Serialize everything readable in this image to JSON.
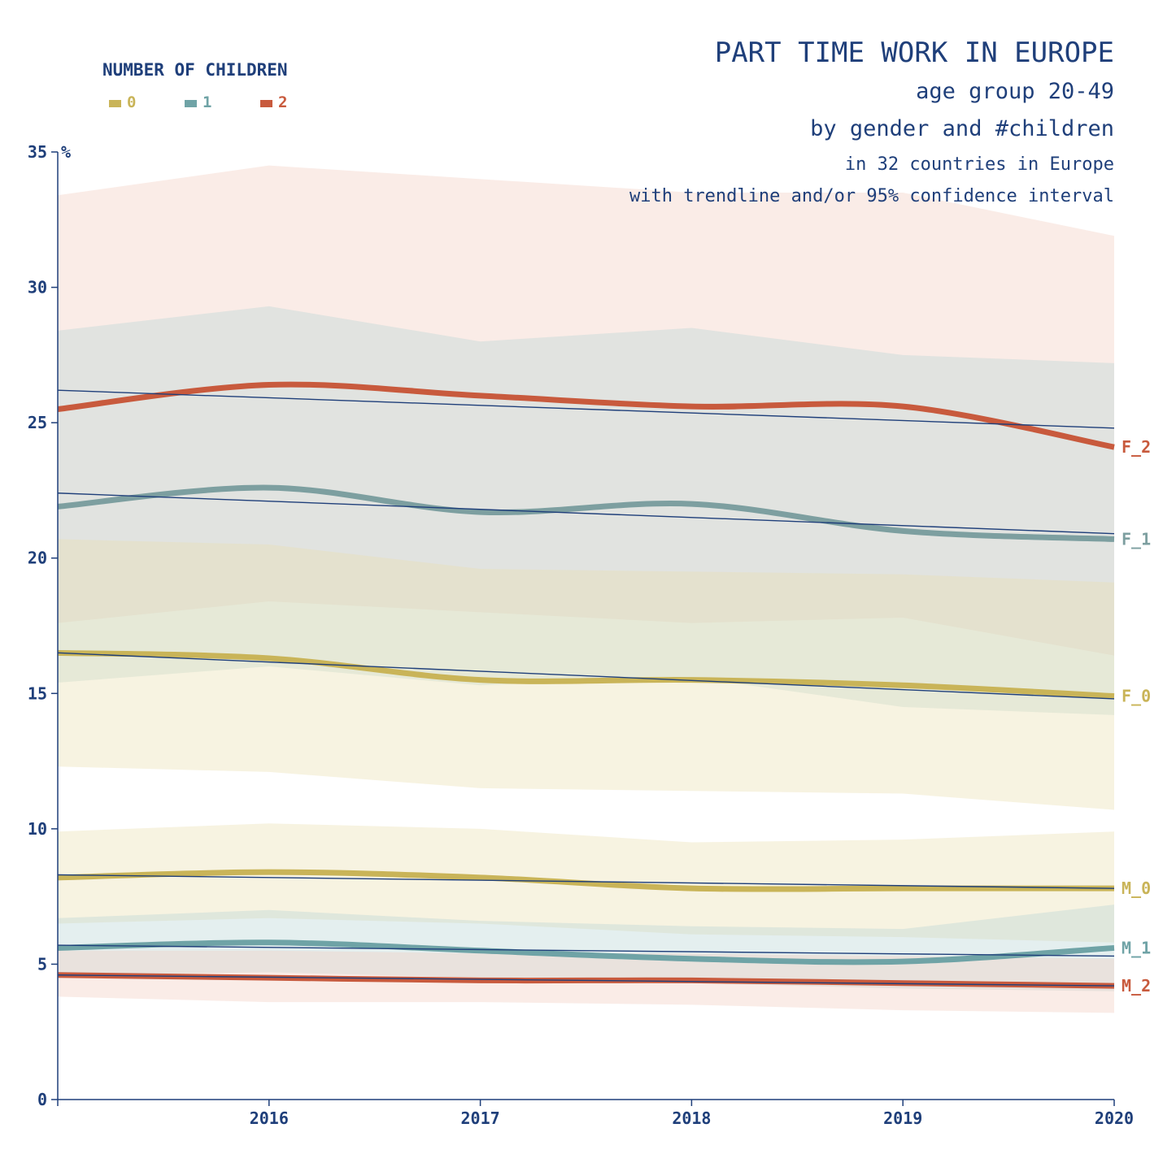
{
  "chart_data": {
    "type": "line",
    "title": "PART TIME WORK IN EUROPE",
    "subtitles": [
      "age group 20-49",
      "by gender and #children",
      "in 32 countries in Europe",
      "with trendline and/or 95% confidence interval"
    ],
    "ylabel": "%",
    "xlabel": "",
    "x": [
      2015,
      2016,
      2017,
      2018,
      2019,
      2020
    ],
    "x_tick_labels": [
      "2016",
      "2017",
      "2018",
      "2019",
      "2020"
    ],
    "x_tick_values": [
      2016,
      2017,
      2018,
      2019,
      2020
    ],
    "xlim": [
      2015,
      2020
    ],
    "ylim": [
      0,
      35
    ],
    "y_ticks": [
      0,
      5,
      10,
      15,
      20,
      25,
      30,
      35
    ],
    "y_tick_labels": [
      "0",
      "5",
      "10",
      "15",
      "20",
      "25",
      "30",
      "35"
    ],
    "grid": false,
    "legend": {
      "title": "NUMBER OF CHILDREN",
      "placement": "top-left",
      "items": [
        {
          "label": "0",
          "color": "#c9b458"
        },
        {
          "label": "1",
          "color": "#6fa3a6"
        },
        {
          "label": "2",
          "color": "#c85a3d"
        }
      ]
    },
    "band_colors": {
      "0": "#e9dfb0",
      "1": "#b9d5d6",
      "2": "#f3cdc0"
    },
    "trend_color": "#1f3f7a",
    "series": [
      {
        "name": "F_2",
        "children": "2",
        "color": "#c85a3d",
        "values": [
          25.5,
          26.4,
          26.0,
          25.6,
          25.6,
          24.1
        ],
        "ci_lower": [
          17.6,
          18.4,
          18.0,
          17.6,
          17.8,
          16.4
        ],
        "ci_upper": [
          33.4,
          34.5,
          34.0,
          33.5,
          33.5,
          31.9
        ],
        "trend": [
          26.2,
          24.8
        ]
      },
      {
        "name": "F_1",
        "children": "1",
        "color": "#7d9fa0",
        "values": [
          21.9,
          22.6,
          21.7,
          22.0,
          21.0,
          20.7
        ],
        "ci_lower": [
          15.4,
          16.0,
          15.3,
          15.6,
          14.5,
          14.2
        ],
        "ci_upper": [
          28.4,
          29.3,
          28.0,
          28.5,
          27.5,
          27.2
        ],
        "trend": [
          22.4,
          20.9
        ]
      },
      {
        "name": "F_0",
        "children": "0",
        "color": "#c9b458",
        "values": [
          16.5,
          16.3,
          15.5,
          15.5,
          15.3,
          14.9
        ],
        "ci_lower": [
          12.3,
          12.1,
          11.5,
          11.4,
          11.3,
          10.7
        ],
        "ci_upper": [
          20.7,
          20.5,
          19.6,
          19.5,
          19.4,
          19.1
        ],
        "trend": [
          16.5,
          14.8
        ]
      },
      {
        "name": "M_0",
        "children": "0",
        "color": "#c9b458",
        "values": [
          8.2,
          8.4,
          8.2,
          7.8,
          7.8,
          7.8
        ],
        "ci_lower": [
          6.5,
          6.7,
          6.5,
          6.1,
          6.0,
          5.8
        ],
        "ci_upper": [
          9.9,
          10.2,
          10.0,
          9.5,
          9.6,
          9.9
        ],
        "trend": [
          8.3,
          7.8
        ]
      },
      {
        "name": "M_1",
        "children": "1",
        "color": "#6fa3a6",
        "values": [
          5.6,
          5.8,
          5.5,
          5.2,
          5.1,
          5.6
        ],
        "ci_lower": [
          4.6,
          4.7,
          4.5,
          4.3,
          4.1,
          4.0
        ],
        "ci_upper": [
          6.7,
          7.0,
          6.6,
          6.4,
          6.3,
          7.2
        ],
        "trend": [
          5.7,
          5.3
        ]
      },
      {
        "name": "M_2",
        "children": "2",
        "color": "#c85a3d",
        "values": [
          4.6,
          4.5,
          4.4,
          4.4,
          4.3,
          4.2
        ],
        "ci_lower": [
          3.8,
          3.6,
          3.6,
          3.5,
          3.3,
          3.2
        ],
        "ci_upper": [
          5.5,
          5.5,
          5.4,
          5.4,
          5.3,
          5.2
        ],
        "trend": [
          4.6,
          4.2
        ]
      }
    ]
  }
}
